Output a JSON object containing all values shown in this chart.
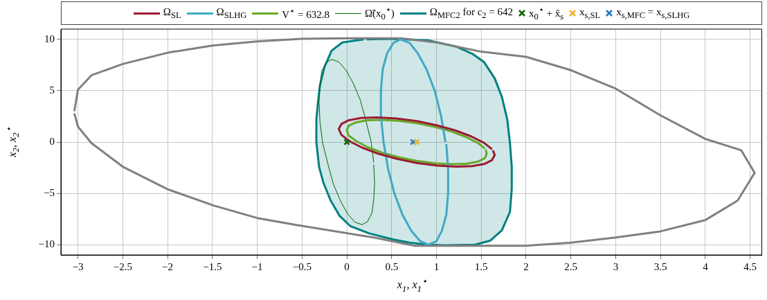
{
  "chart_data": {
    "type": "line",
    "xlabel": "x$_{1}$, x$_{1}$$^{⋆}$",
    "ylabel": "x$_{2}$, x$_{2}$$^{⋆}$",
    "xlim": [
      -3.19,
      4.63
    ],
    "ylim": [
      -11,
      11
    ],
    "xticks": [
      -3,
      -2.5,
      -2,
      -1.5,
      -1,
      -0.5,
      0,
      0.5,
      1,
      1.5,
      2,
      2.5,
      3,
      3.5,
      4,
      4.5
    ],
    "yticks": [
      -10,
      -5,
      0,
      5,
      10
    ],
    "grid": true,
    "legend": "top",
    "series": [
      {
        "name": "x$_{0}$$^{⋆}$ + x̃$_{s}$",
        "type": "scatter",
        "marker": "cross",
        "color": "#006400",
        "x": [
          0
        ],
        "values": [
          0
        ]
      },
      {
        "name": "x$_{s,SL}$",
        "type": "scatter",
        "marker": "cross",
        "color": "#f0b429",
        "x": [
          0.78
        ],
        "values": [
          0
        ]
      },
      {
        "name": "x$_{s,MFC}$ = x$_{s,SLHG}$",
        "type": "scatter",
        "marker": "cross",
        "color": "#1f78c8",
        "x": [
          0.74
        ],
        "values": [
          0
        ]
      },
      {
        "name": "Ω$_{SL}$",
        "color": "#9b1b30",
        "x": [
          1.62,
          1.53,
          1.39,
          1.21,
          1.0,
          0.78,
          0.55,
          0.34,
          0.16,
          0.02,
          -0.06,
          -0.09,
          -0.06,
          0.03,
          0.17,
          0.35,
          0.56,
          0.78,
          1.01,
          1.22,
          1.4,
          1.54,
          1.62,
          1.65,
          1.63
        ],
        "values": [
          -0.7,
          -0.08,
          0.54,
          1.13,
          1.64,
          2.04,
          2.3,
          2.4,
          2.34,
          2.12,
          1.76,
          1.27,
          0.7,
          0.08,
          -0.54,
          -1.13,
          -1.64,
          -2.04,
          -2.3,
          -2.4,
          -2.34,
          -2.12,
          -1.76,
          -1.27,
          -0.8
        ]
      },
      {
        "name": "Ω$_{SLHG}$",
        "color": "#3fa9c4",
        "x": [
          1.1,
          1.05,
          0.98,
          0.89,
          0.79,
          0.7,
          0.6,
          0.52,
          0.45,
          0.4,
          0.38,
          0.38,
          0.41,
          0.46,
          0.53,
          0.62,
          0.72,
          0.82,
          0.91,
          1.0,
          1.06,
          1.11,
          1.13,
          1.13,
          1.11
        ],
        "values": [
          0,
          2.59,
          5,
          7.07,
          8.66,
          9.66,
          10,
          9.66,
          8.66,
          7.07,
          5,
          2.59,
          0,
          -2.59,
          -5,
          -7.07,
          -8.66,
          -9.66,
          -10,
          -9.66,
          -8.66,
          -7.07,
          -5,
          -2.59,
          -0.2
        ]
      },
      {
        "name": "V$^{⋆}$ = 632.8",
        "color": "#6aa82a",
        "x": [
          1.54,
          1.46,
          1.33,
          1.17,
          0.98,
          0.78,
          0.57,
          0.38,
          0.22,
          0.1,
          0.02,
          0.0,
          0.02,
          0.11,
          0.23,
          0.39,
          0.58,
          0.78,
          0.99,
          1.18,
          1.34,
          1.46,
          1.54,
          1.56,
          1.55
        ],
        "values": [
          -0.63,
          -0.07,
          0.49,
          1.02,
          1.48,
          1.84,
          2.07,
          2.16,
          2.11,
          1.91,
          1.58,
          1.14,
          0.63,
          0.07,
          -0.49,
          -1.02,
          -1.48,
          -1.84,
          -2.07,
          -2.16,
          -2.11,
          -1.91,
          -1.58,
          -1.14,
          -0.73
        ]
      },
      {
        "name": "Ω̃(x$_{0}$$^{⋆}$)",
        "color": "#006400",
        "x": [
          0.3,
          0.27,
          0.21,
          0.15,
          0.07,
          -0.01,
          -0.09,
          -0.17,
          -0.23,
          -0.28,
          -0.3,
          -0.31,
          -0.3,
          -0.27,
          -0.21,
          -0.15,
          -0.07,
          0.01,
          0.09,
          0.17,
          0.23,
          0.28,
          0.3,
          0.31,
          0.3
        ],
        "values": [
          -2.0,
          0.09,
          2.17,
          4.1,
          5.75,
          7.01,
          7.8,
          8.05,
          7.75,
          6.92,
          5.63,
          3.95,
          2.0,
          -0.09,
          -2.17,
          -4.1,
          -5.75,
          -7.01,
          -7.8,
          -8.05,
          -7.75,
          -6.92,
          -5.63,
          -3.95,
          -2.2
        ]
      },
      {
        "color": "#808080",
        "x": [
          -3.04,
          -3.0,
          -2.85,
          -2.5,
          -2.0,
          -1.5,
          -1.0,
          -0.5,
          0,
          0.6,
          1.0,
          1.5,
          2.0,
          2.5,
          3.0,
          3.5,
          4.0,
          4.4,
          4.55,
          4.36,
          4.0,
          3.5,
          3.0,
          2.5,
          2.0,
          1.0,
          0.76,
          0.3,
          -0.55,
          -1.0,
          -1.48,
          -2.0,
          -2.5,
          -2.85,
          -3.0,
          -3.04
        ],
        "values": [
          3.0,
          5.1,
          6.5,
          7.6,
          8.7,
          9.4,
          9.8,
          10.05,
          10.1,
          10.1,
          9.7,
          8.8,
          8.3,
          7.0,
          5.2,
          2.6,
          0.3,
          -0.8,
          -3.0,
          -5.7,
          -7.6,
          -8.7,
          -9.3,
          -9.8,
          -10.1,
          -10.1,
          -10.1,
          -9.3,
          -8.1,
          -7.4,
          -6.2,
          -4.6,
          -2.4,
          -0.1,
          1.5,
          2.8
        ]
      },
      {
        "name": "Ω$_{MFC2}$ for c$_{2}$ = 642",
        "type": "area",
        "color": "#008080",
        "x": [
          0.22,
          0.45,
          0.65,
          0.91,
          1.22,
          1.4,
          1.53,
          1.65,
          1.73,
          1.79,
          1.82,
          1.84,
          1.84,
          1.82,
          1.73,
          1.6,
          1.43,
          1.1,
          0.91,
          0.7,
          0.52,
          0.25,
          0.04,
          -0.08,
          -0.18,
          -0.26,
          -0.31,
          -0.34,
          -0.34,
          -0.32,
          -0.3,
          -0.25,
          -0.17,
          -0.05,
          0.19
        ],
        "values": [
          10.0,
          10.05,
          10.0,
          9.9,
          9.3,
          8.6,
          7.8,
          6.2,
          4.4,
          2.2,
          -0.1,
          -2.4,
          -4.6,
          -6.8,
          -8.6,
          -9.6,
          -10.0,
          -10.05,
          -10.0,
          -9.8,
          -9.5,
          -8.9,
          -8.2,
          -7.2,
          -5.7,
          -4.0,
          -2.4,
          0,
          2.2,
          4.0,
          5.5,
          7.3,
          8.9,
          9.7,
          10.0
        ]
      }
    ]
  }
}
